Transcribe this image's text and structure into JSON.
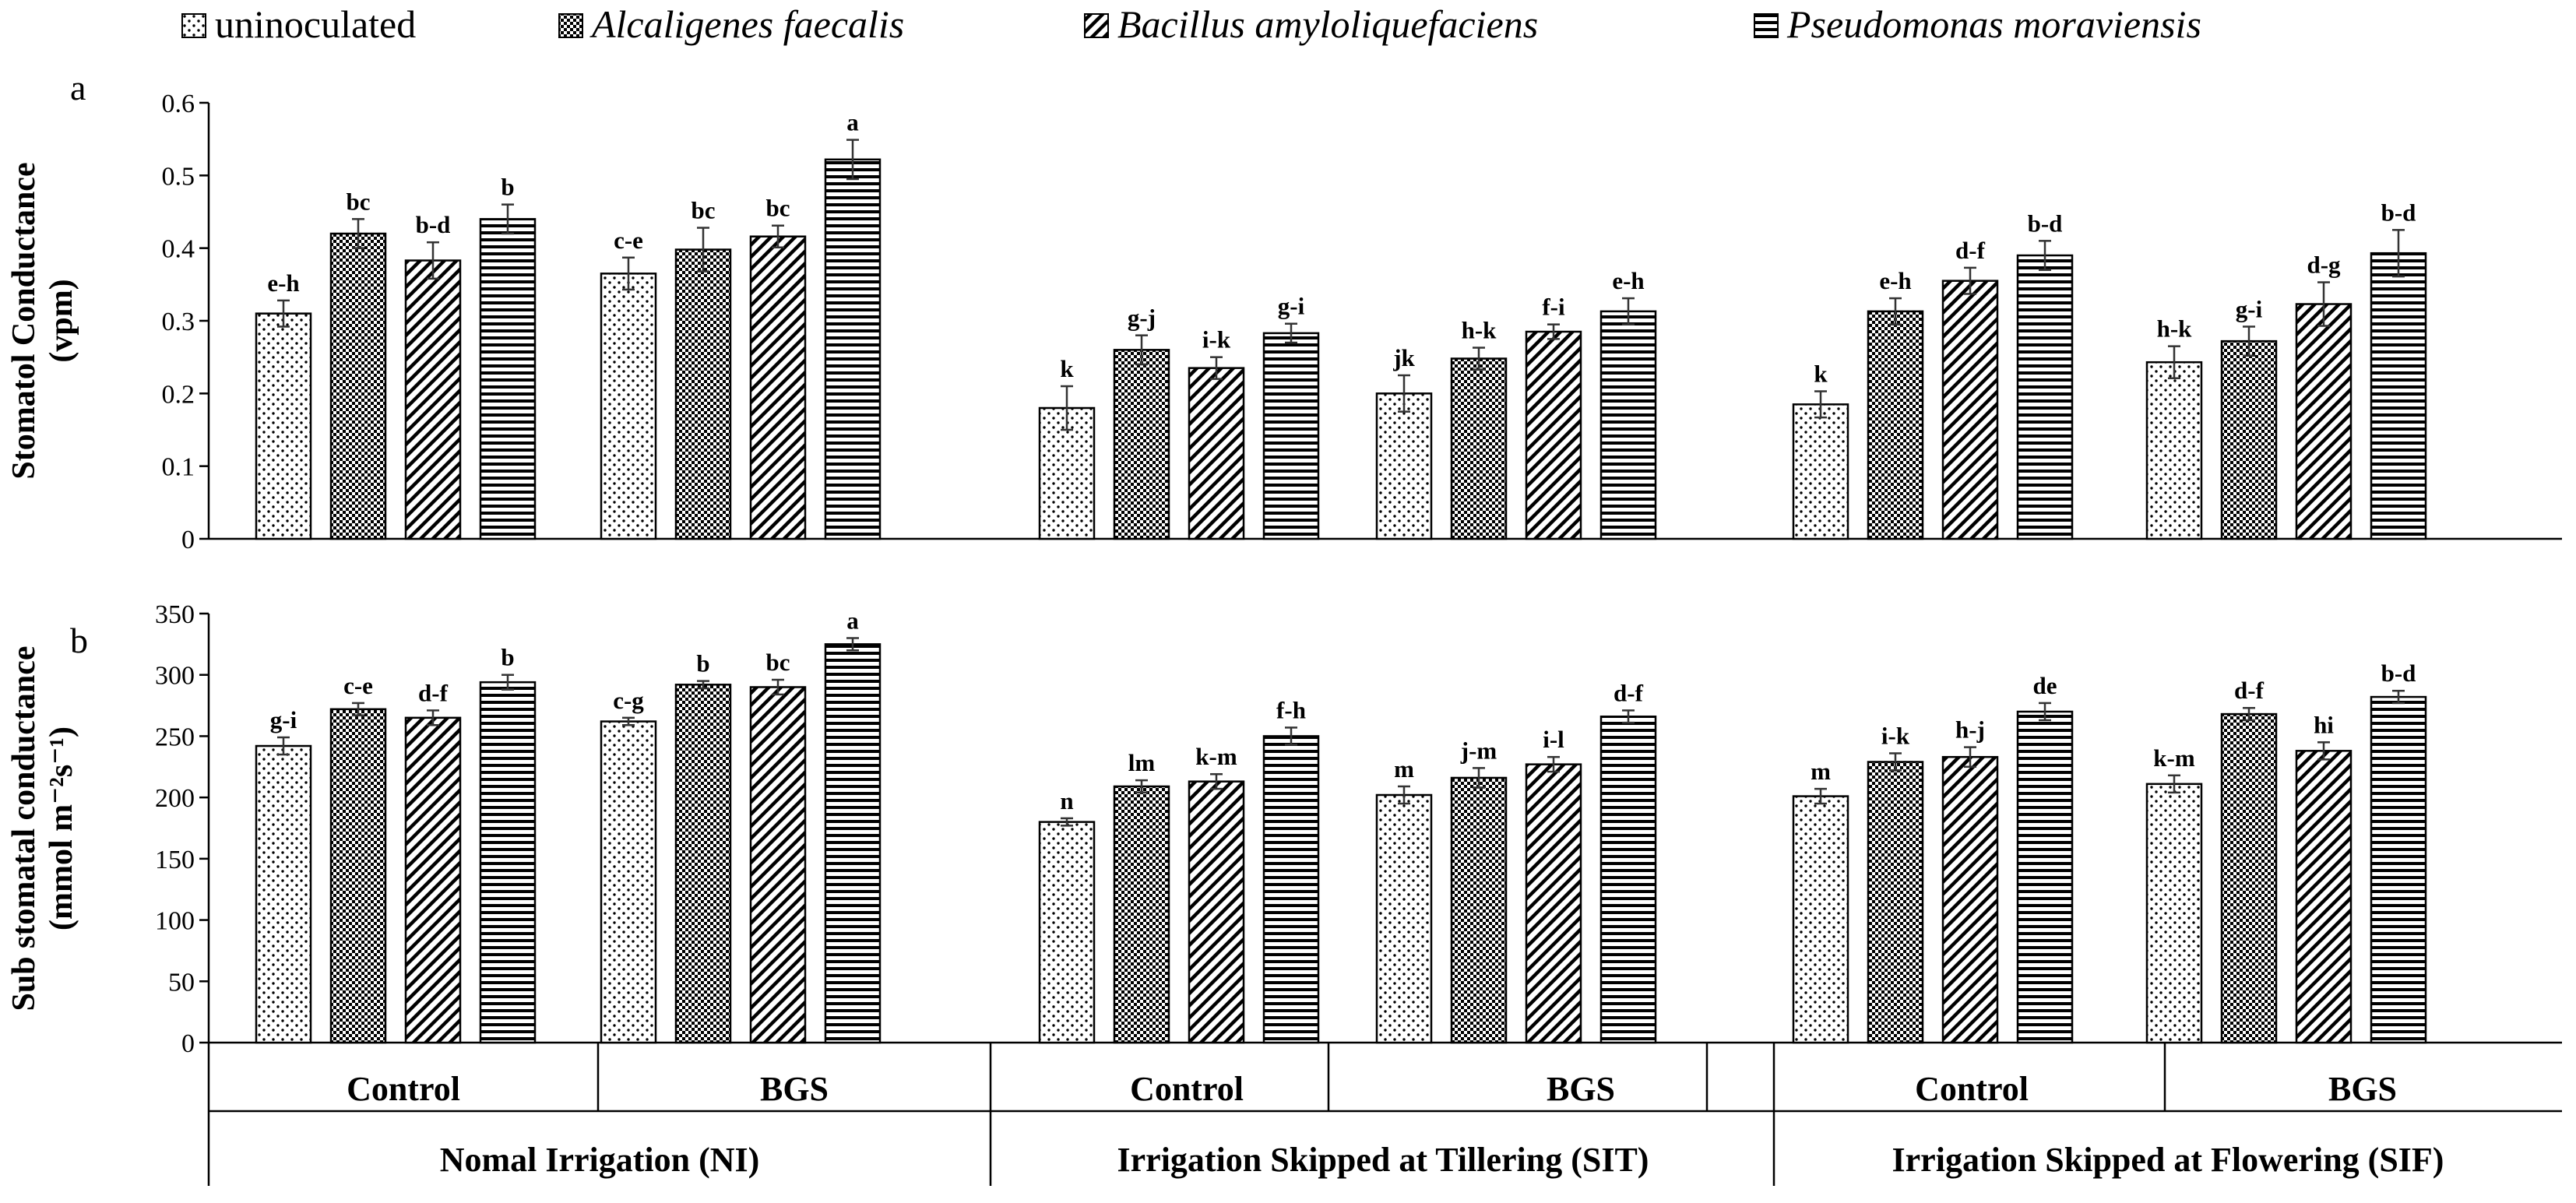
{
  "legend": [
    {
      "label": "uninoculated",
      "pattern": "dots",
      "italic": false
    },
    {
      "label": "Alcaligenes faecalis",
      "pattern": "checker",
      "italic": true
    },
    {
      "label": "Bacillus amyloliquefaciens",
      "pattern": "diag",
      "italic": true
    },
    {
      "label": "Pseudomonas moraviensis",
      "pattern": "hlines",
      "italic": true
    }
  ],
  "x_axis": {
    "subgroups": [
      "Control",
      "BGS",
      "Control",
      "BGS",
      "Control",
      "BGS"
    ],
    "groups": [
      {
        "label": "Nomal Irrigation (NI)",
        "span": [
          0,
          1
        ]
      },
      {
        "label": "Irrigation Skipped at Tillering (SIT)",
        "span": [
          2,
          3
        ]
      },
      {
        "label": "Irrigation Skipped at Flowering (SIF)",
        "span": [
          4,
          5
        ]
      }
    ]
  },
  "chart_data": [
    {
      "type": "bar",
      "panel_label": "a",
      "title": "",
      "ylabel": "Stomatol Conductance\n(vpm)",
      "xlabel": "",
      "ylim": [
        0,
        0.6
      ],
      "yticks": [
        "0",
        "0.1",
        "0.2",
        "0.3",
        "0.4",
        "0.5",
        "0.6"
      ],
      "ytick_values": [
        0,
        0.1,
        0.2,
        0.3,
        0.4,
        0.5,
        0.6
      ],
      "grid": false,
      "legend_position": "top",
      "categories": [
        "NI Control",
        "NI BGS",
        "SIT Control",
        "SIT BGS",
        "SIF Control",
        "SIF BGS"
      ],
      "series": [
        {
          "name": "uninoculated",
          "values": [
            0.31,
            0.365,
            0.18,
            0.2,
            0.185,
            0.243
          ],
          "errors": [
            0.018,
            0.022,
            0.03,
            0.025,
            0.018,
            0.022
          ],
          "letters": [
            "e-h",
            "c-e",
            "k",
            "jk",
            "k",
            "h-k"
          ]
        },
        {
          "name": "Alcaligenes faecalis",
          "values": [
            0.42,
            0.398,
            0.26,
            0.248,
            0.313,
            0.272
          ],
          "errors": [
            0.02,
            0.03,
            0.02,
            0.015,
            0.018,
            0.02
          ],
          "letters": [
            "bc",
            "bc",
            "g-j",
            "h-k",
            "e-h",
            "g-i"
          ]
        },
        {
          "name": "Bacillus amyloliquefaciens",
          "values": [
            0.383,
            0.416,
            0.235,
            0.285,
            0.355,
            0.323
          ],
          "errors": [
            0.025,
            0.015,
            0.015,
            0.01,
            0.018,
            0.03
          ],
          "letters": [
            "b-d",
            "bc",
            "i-k",
            "f-i",
            "d-f",
            "d-g"
          ]
        },
        {
          "name": "Pseudomonas moraviensis",
          "values": [
            0.44,
            0.522,
            0.283,
            0.313,
            0.39,
            0.393
          ],
          "errors": [
            0.02,
            0.027,
            0.013,
            0.018,
            0.02,
            0.032
          ],
          "letters": [
            "b",
            "a",
            "g-i",
            "e-h",
            "b-d",
            "b-d"
          ]
        }
      ]
    },
    {
      "type": "bar",
      "panel_label": "b",
      "title": "",
      "ylabel": "Sub stomatal conductance\n(mmol m⁻²s⁻¹)",
      "xlabel": "",
      "ylim": [
        0,
        350
      ],
      "yticks": [
        "0",
        "50",
        "100",
        "150",
        "200",
        "250",
        "300",
        "350"
      ],
      "ytick_values": [
        0,
        50,
        100,
        150,
        200,
        250,
        300,
        350
      ],
      "grid": false,
      "legend_position": "top",
      "categories": [
        "NI Control",
        "NI BGS",
        "SIT Control",
        "SIT BGS",
        "SIF Control",
        "SIF BGS"
      ],
      "series": [
        {
          "name": "uninoculated",
          "values": [
            242,
            262,
            180,
            202,
            201,
            211
          ],
          "errors": [
            7,
            3,
            3,
            7,
            6,
            7
          ],
          "letters": [
            "g-i",
            "c-g",
            "n",
            "m",
            "m",
            "k-m"
          ]
        },
        {
          "name": "Alcaligenes faecalis",
          "values": [
            272,
            292,
            209,
            216,
            229,
            268
          ],
          "errors": [
            5,
            3,
            5,
            8,
            7,
            5
          ],
          "letters": [
            "c-e",
            "b",
            "lm",
            "j-m",
            "i-k",
            "d-f"
          ]
        },
        {
          "name": "Bacillus amyloliquefaciens",
          "values": [
            265,
            290,
            213,
            227,
            233,
            238
          ],
          "errors": [
            6,
            6,
            6,
            6,
            8,
            7
          ],
          "letters": [
            "d-f",
            "bc",
            "k-m",
            "i-l",
            "h-j",
            "hi"
          ]
        },
        {
          "name": "Pseudomonas moraviensis",
          "values": [
            294,
            325,
            250,
            266,
            270,
            282
          ],
          "errors": [
            6,
            5,
            7,
            5,
            7,
            5
          ],
          "letters": [
            "b",
            "a",
            "f-h",
            "d-f",
            "de",
            "b-d"
          ]
        }
      ]
    }
  ]
}
